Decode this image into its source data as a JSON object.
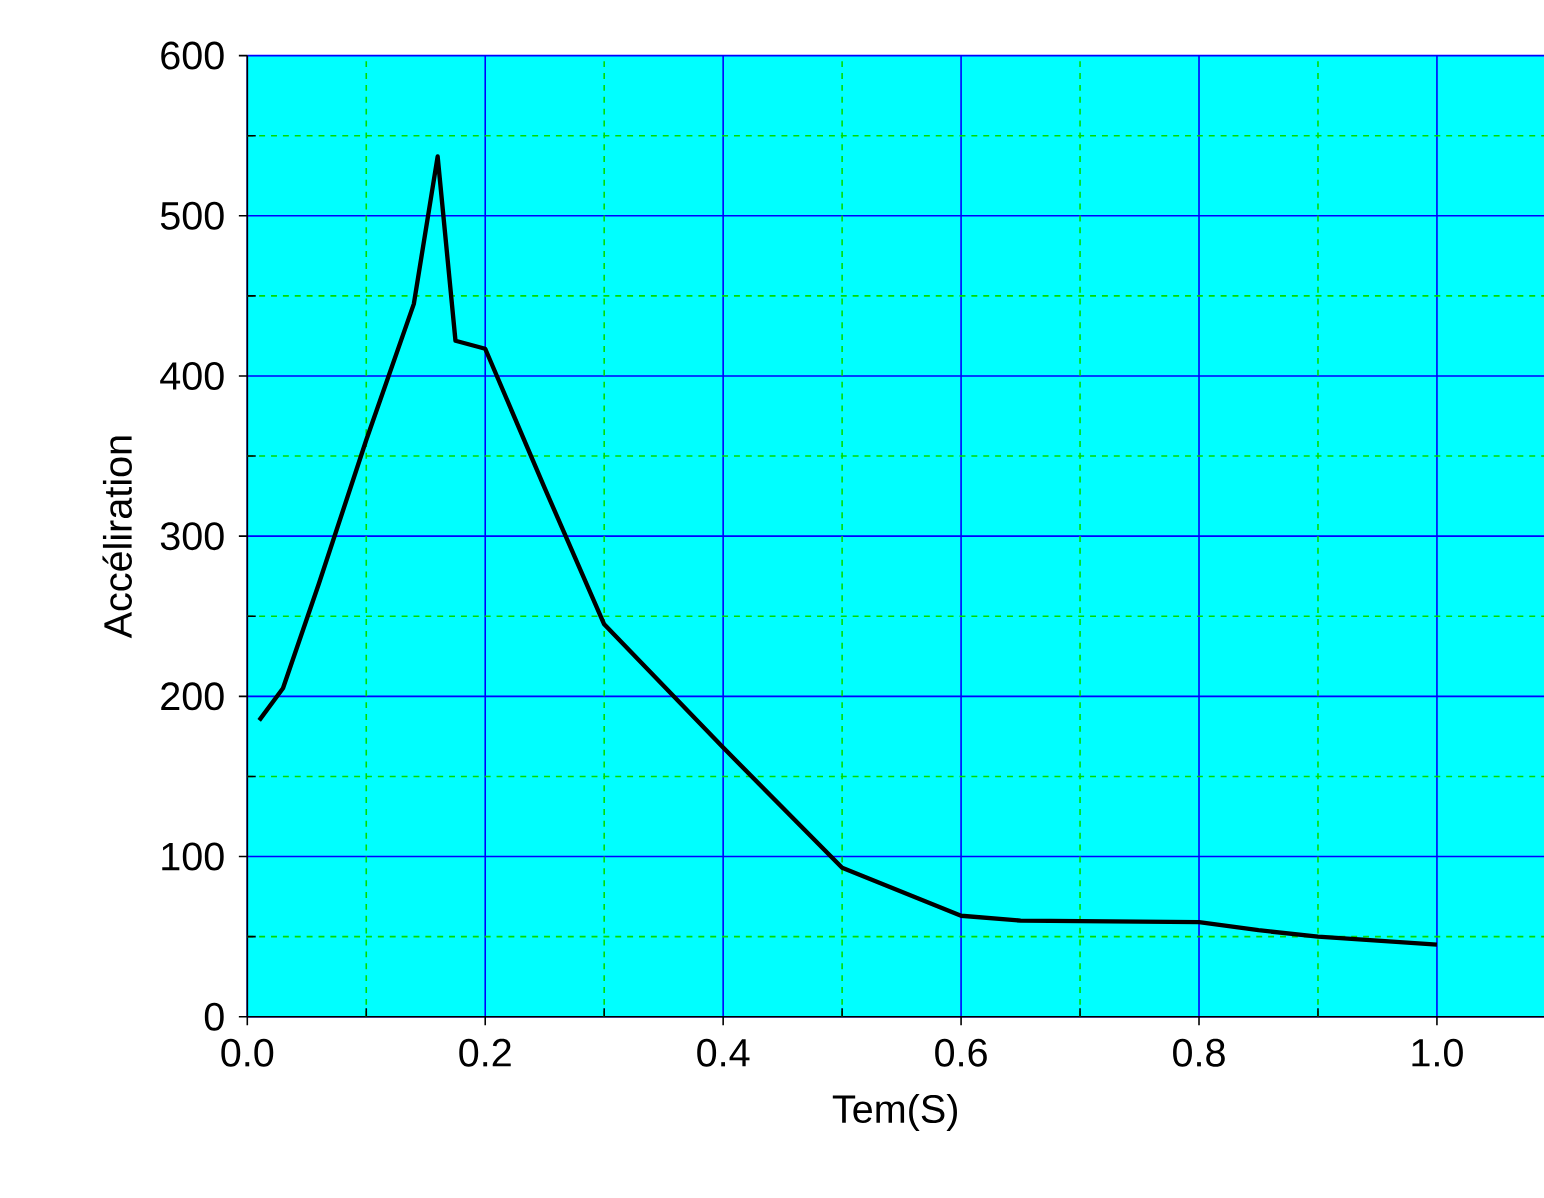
{
  "chart_data": {
    "type": "line",
    "xlabel": "Tem(S)",
    "ylabel": "Accéliration",
    "x": [
      0.01,
      0.03,
      0.06,
      0.1,
      0.14,
      0.16,
      0.175,
      0.2,
      0.25,
      0.3,
      0.4,
      0.5,
      0.6,
      0.65,
      0.8,
      0.85,
      0.9,
      1.0
    ],
    "series": [
      {
        "color": "#000000",
        "values": [
          185,
          205,
          270,
          360,
          445,
          537,
          422,
          417,
          330,
          245,
          168,
          93,
          63,
          60,
          59,
          54,
          50,
          45
        ]
      }
    ],
    "xlim": [
      0,
      1.09
    ],
    "ylim": [
      0,
      600
    ],
    "xticks": [
      {
        "value": 0,
        "label": "0.0"
      },
      {
        "value": 0.1,
        "label": null
      },
      0.2,
      {
        "value": 0.3,
        "label": null
      },
      0.4,
      {
        "value": 0.5,
        "label": null
      },
      0.6,
      {
        "value": 0.7,
        "label": null
      },
      0.8,
      {
        "value": 0.9,
        "label": null
      },
      {
        "value": 1,
        "label": "1.0"
      }
    ],
    "yticks": [
      0,
      {
        "value": 50,
        "label": null
      },
      100,
      {
        "value": 150,
        "label": null
      },
      200,
      {
        "value": 250,
        "label": null
      },
      300,
      {
        "value": 350,
        "label": null
      },
      400,
      {
        "value": 450,
        "label": null
      },
      500,
      {
        "value": 550,
        "label": null
      },
      600
    ],
    "grid": true,
    "marker": "none",
    "line_style": "solid"
  }
}
